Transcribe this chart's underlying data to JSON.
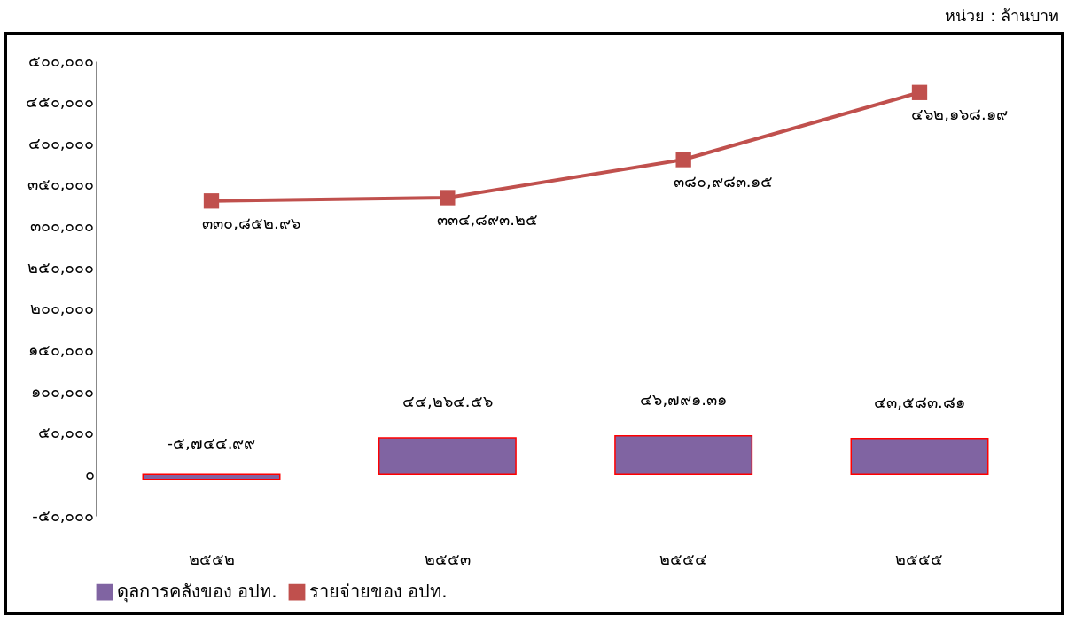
{
  "chart_data": {
    "type": "bar",
    "annotations": [
      "หน่วย : ล้านบาท"
    ],
    "categories": [
      "๒๕๕๒",
      "๒๕๕๓",
      "๒๕๕๔",
      "๒๕๕๕"
    ],
    "series": [
      {
        "name": "ดุลการคลังของ อปท.",
        "color": "#8064a2",
        "values": [
          -5744.99,
          44264.56,
          46791.31,
          43583.81
        ],
        "value_labels": [
          "-๕,๗๔๔.๙๙",
          "๔๔,๒๖๔.๕๖",
          "๔๖,๗๙๑.๓๑",
          "๔๓,๕๘๓.๘๑"
        ]
      },
      {
        "name": "รายจ่ายของ อปท.",
        "type": "line",
        "color": "#c0504d",
        "marker": "square",
        "values": [
          330852.96,
          334893.25,
          380983.15,
          462168.19
        ],
        "value_labels": [
          "๓๓๐,๘๕๒.๙๖",
          "๓๓๔,๘๙๓.๒๕",
          "๓๘๐,๙๘๓.๑๕",
          "๔๖๒,๑๖๘.๑๙"
        ]
      }
    ],
    "ylim": [
      -50000,
      500000
    ],
    "yticks": [
      {
        "value": -50000,
        "label": "-๕๐,๐๐๐"
      },
      {
        "value": 0,
        "label": "๐"
      },
      {
        "value": 50000,
        "label": "๕๐,๐๐๐"
      },
      {
        "value": 100000,
        "label": "๑๐๐,๐๐๐"
      },
      {
        "value": 150000,
        "label": "๑๕๐,๐๐๐"
      },
      {
        "value": 200000,
        "label": "๒๐๐,๐๐๐"
      },
      {
        "value": 250000,
        "label": "๒๕๐,๐๐๐"
      },
      {
        "value": 300000,
        "label": "๓๐๐,๐๐๐"
      },
      {
        "value": 350000,
        "label": "๓๕๐,๐๐๐"
      },
      {
        "value": 400000,
        "label": "๔๐๐,๐๐๐"
      },
      {
        "value": 450000,
        "label": "๔๕๐,๐๐๐"
      },
      {
        "value": 500000,
        "label": "๕๐๐,๐๐๐"
      }
    ],
    "grid": false,
    "legend": "bottom"
  }
}
